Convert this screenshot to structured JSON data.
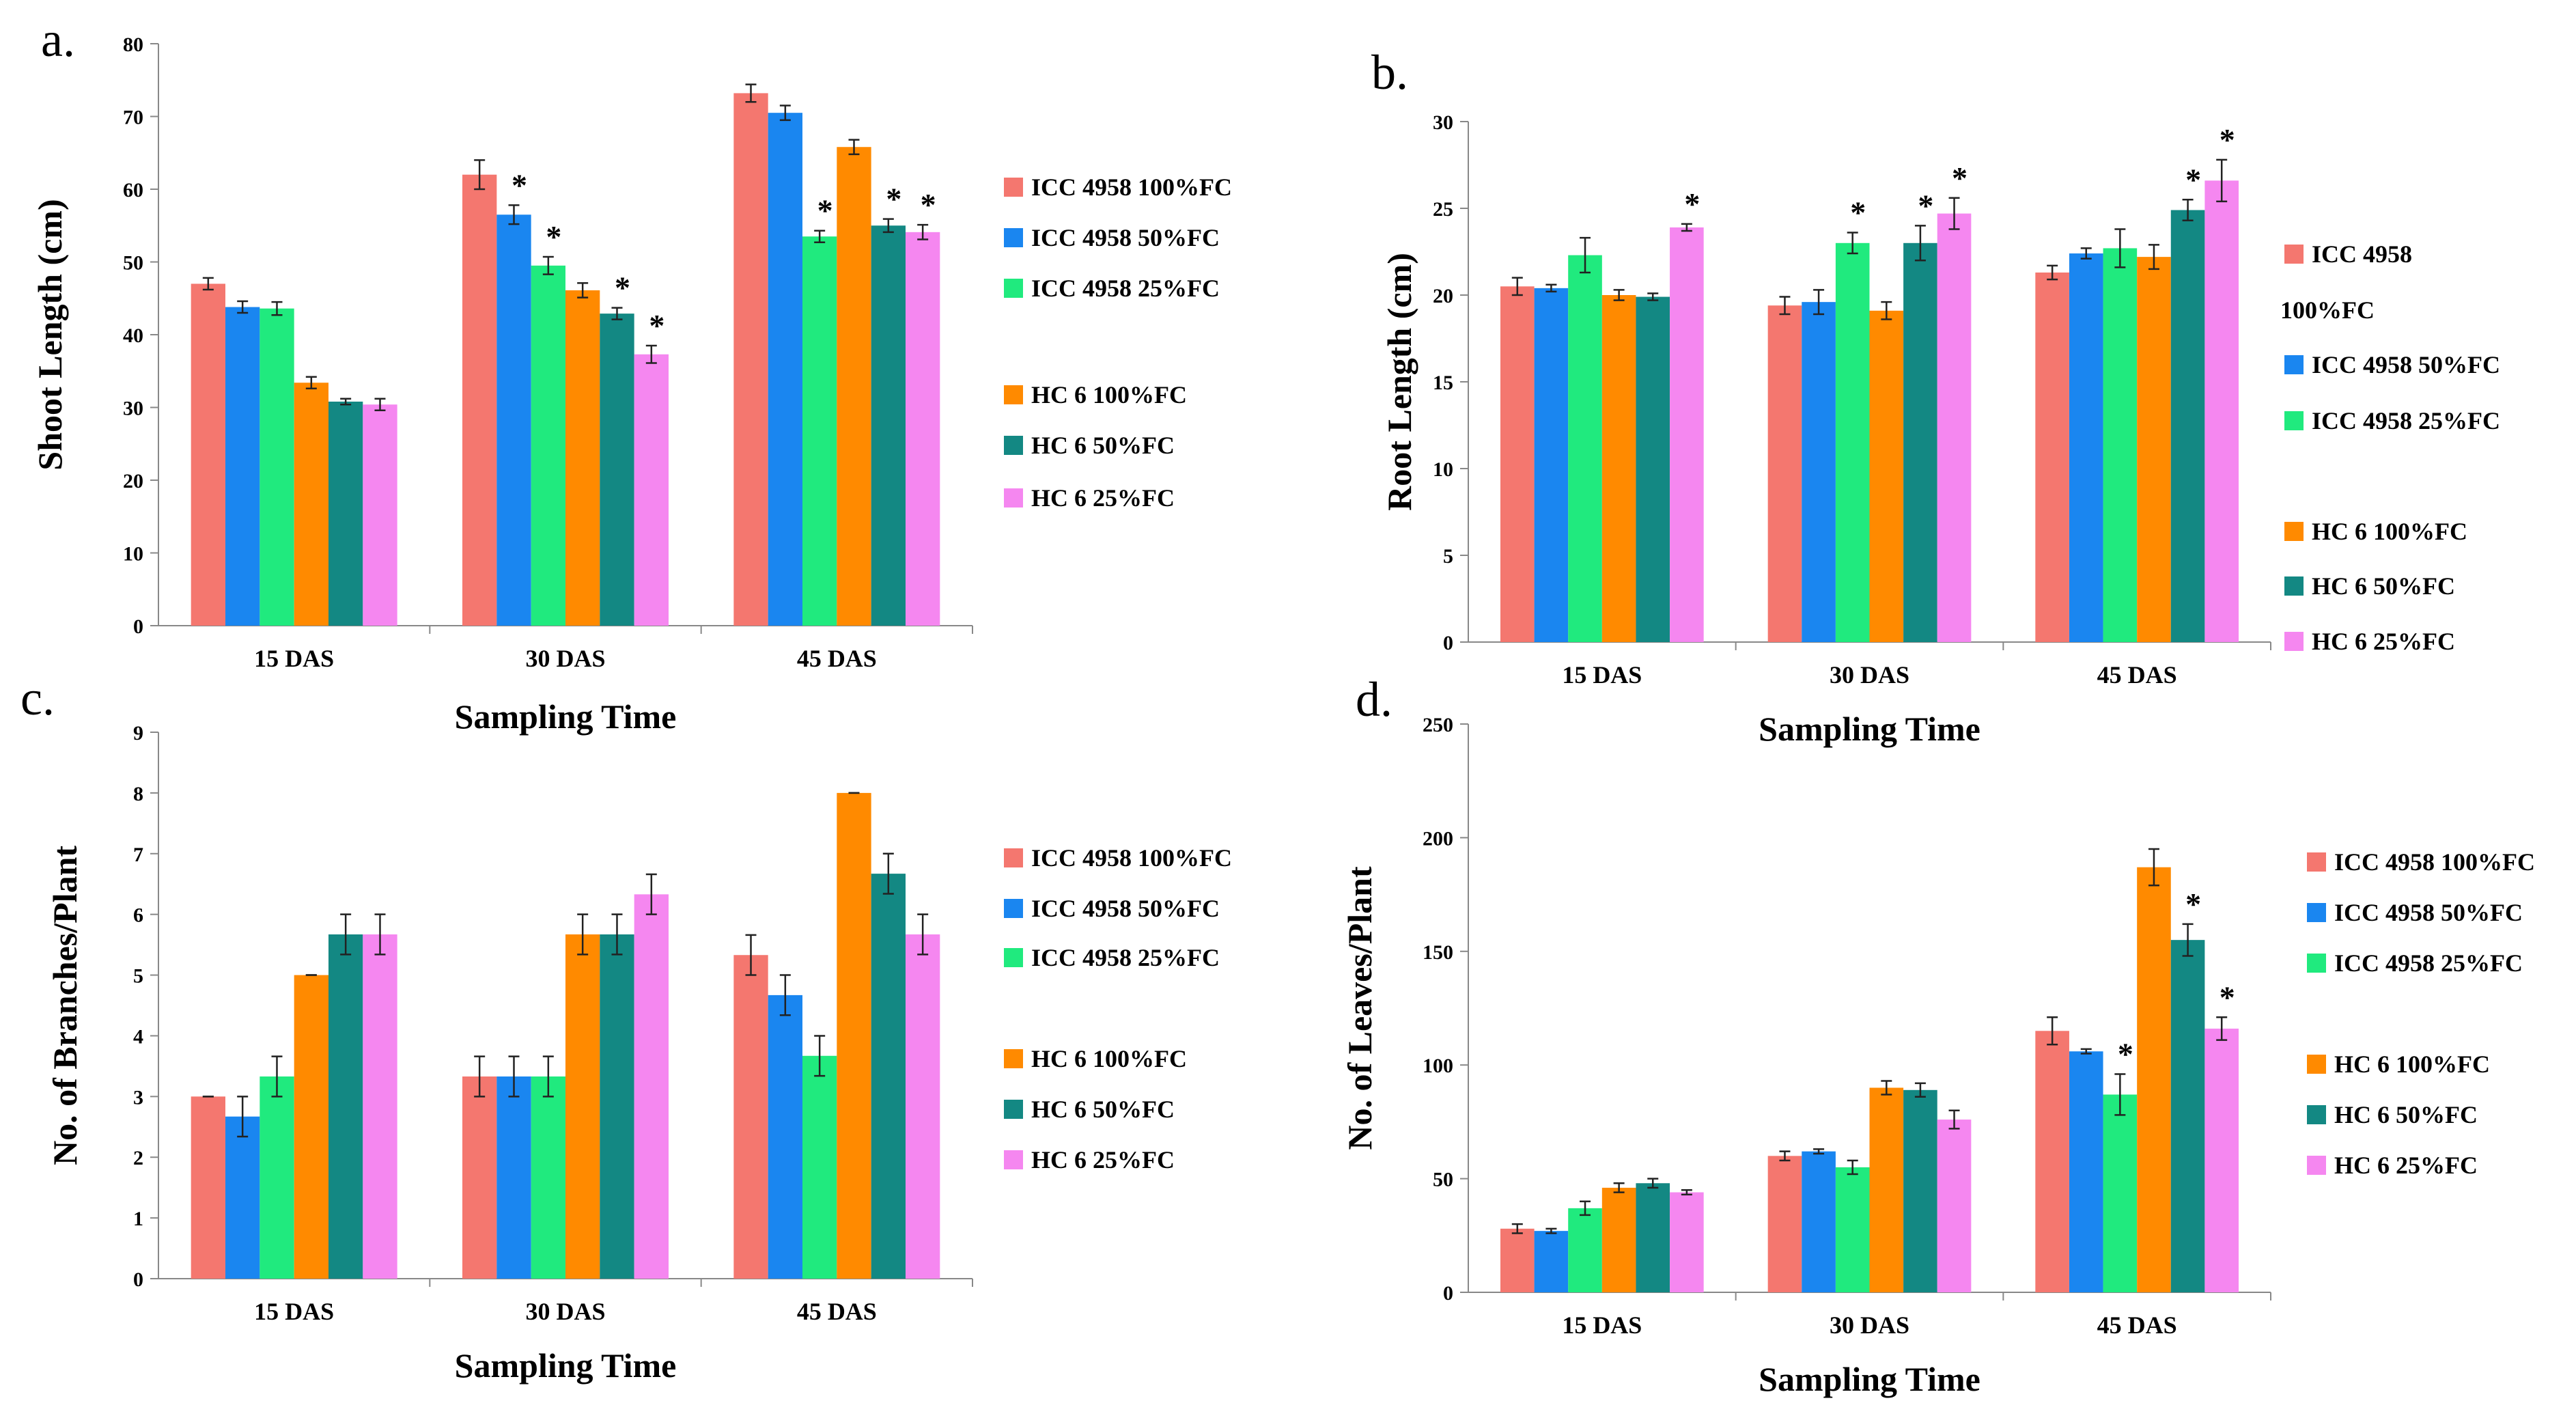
{
  "colors": {
    "s0": "#f4776f",
    "s1": "#1a86f0",
    "s2": "#20ea7e",
    "s3": "#ff8a00",
    "s4": "#138883",
    "s5": "#f587f0"
  },
  "chart_data": [
    {
      "type": "bar",
      "panel_label": "a.",
      "title": "",
      "xlabel": "Sampling Time",
      "ylabel": "Shoot Length (cm)",
      "ylim": [
        0,
        80
      ],
      "yticks": [
        "0",
        "10",
        "20",
        "30",
        "40",
        "50",
        "60",
        "70",
        "80"
      ],
      "categories": [
        "15 DAS",
        "30 DAS",
        "45 DAS"
      ],
      "legend": [
        "ICC 4958 100%FC",
        "ICC 4958 50%FC",
        "ICC 4958 25%FC",
        "HC 6 100%FC",
        "HC 6 50%FC",
        "HC 6 25%FC"
      ],
      "series": [
        {
          "name": "ICC 4958 100%FC",
          "values": [
            47.0,
            62.0,
            73.2
          ],
          "errors": [
            0.8,
            2.0,
            1.2
          ],
          "sig": [
            "",
            "",
            ""
          ]
        },
        {
          "name": "ICC 4958 50%FC",
          "values": [
            43.8,
            56.5,
            70.5
          ],
          "errors": [
            0.8,
            1.3,
            1.0
          ],
          "sig": [
            "",
            "*",
            ""
          ]
        },
        {
          "name": "ICC 4958 25%FC",
          "values": [
            43.6,
            49.5,
            53.5
          ],
          "errors": [
            0.9,
            1.2,
            0.8
          ],
          "sig": [
            "",
            "*",
            "*"
          ]
        },
        {
          "name": "HC 6 100%FC",
          "values": [
            33.4,
            46.1,
            65.8
          ],
          "errors": [
            0.8,
            1.0,
            1.0
          ],
          "sig": [
            "",
            "",
            ""
          ]
        },
        {
          "name": "HC 6 50%FC",
          "values": [
            30.8,
            42.9,
            55.0
          ],
          "errors": [
            0.4,
            0.8,
            0.9
          ],
          "sig": [
            "",
            "*",
            "*"
          ]
        },
        {
          "name": "HC 6 25%FC",
          "values": [
            30.4,
            37.3,
            54.1
          ],
          "errors": [
            0.8,
            1.2,
            1.0
          ],
          "sig": [
            "",
            "*",
            "*"
          ]
        }
      ]
    },
    {
      "type": "bar",
      "panel_label": "b.",
      "title": "",
      "xlabel": "Sampling Time",
      "ylabel": "Root Length (cm)",
      "ylim": [
        0,
        30
      ],
      "yticks": [
        "0",
        "5",
        "10",
        "15",
        "20",
        "25",
        "30"
      ],
      "categories": [
        "15 DAS",
        "30 DAS",
        "45 DAS"
      ],
      "legend": [
        "ICC 4958 100%FC",
        "ICC 4958 50%FC",
        "ICC 4958 25%FC",
        "HC 6 100%FC",
        "HC 6 50%FC",
        "HC 6 25%FC"
      ],
      "series": [
        {
          "name": "ICC 4958 100%FC",
          "values": [
            20.5,
            19.4,
            21.3
          ],
          "errors": [
            0.5,
            0.5,
            0.4
          ],
          "sig": [
            "",
            "",
            ""
          ]
        },
        {
          "name": "ICC 4958 50%FC",
          "values": [
            20.4,
            19.6,
            22.4
          ],
          "errors": [
            0.2,
            0.7,
            0.3
          ],
          "sig": [
            "",
            "",
            ""
          ]
        },
        {
          "name": "ICC 4958 25%FC",
          "values": [
            22.3,
            23.0,
            22.7
          ],
          "errors": [
            1.0,
            0.6,
            1.1
          ],
          "sig": [
            "",
            "*",
            ""
          ]
        },
        {
          "name": "HC 6 100%FC",
          "values": [
            20.0,
            19.1,
            22.2
          ],
          "errors": [
            0.3,
            0.5,
            0.7
          ],
          "sig": [
            "",
            "",
            ""
          ]
        },
        {
          "name": "HC 6 50%FC",
          "values": [
            19.9,
            23.0,
            24.9
          ],
          "errors": [
            0.2,
            1.0,
            0.6
          ],
          "sig": [
            "",
            "*",
            "*"
          ]
        },
        {
          "name": "HC 6 25%FC",
          "values": [
            23.9,
            24.7,
            26.6
          ],
          "errors": [
            0.2,
            0.9,
            1.2
          ],
          "sig": [
            "*",
            "*",
            "*"
          ]
        }
      ]
    },
    {
      "type": "bar",
      "panel_label": "c.",
      "title": "",
      "xlabel": "Sampling Time",
      "ylabel": "No. of Branches/Plant",
      "ylim": [
        0,
        9
      ],
      "yticks": [
        "0",
        "1",
        "2",
        "3",
        "4",
        "5",
        "6",
        "7",
        "8",
        "9"
      ],
      "categories": [
        "15 DAS",
        "30 DAS",
        "45 DAS"
      ],
      "legend": [
        "ICC 4958 100%FC",
        "ICC 4958 50%FC",
        "ICC 4958 25%FC",
        "HC 6 100%FC",
        "HC 6 50%FC",
        "HC 6 25%FC"
      ],
      "series": [
        {
          "name": "ICC 4958 100%FC",
          "values": [
            3.0,
            3.33,
            5.33
          ],
          "errors": [
            0.0,
            0.33,
            0.33
          ],
          "sig": [
            "",
            "",
            ""
          ]
        },
        {
          "name": "ICC 4958 50%FC",
          "values": [
            2.67,
            3.33,
            4.67
          ],
          "errors": [
            0.33,
            0.33,
            0.33
          ],
          "sig": [
            "",
            "",
            ""
          ]
        },
        {
          "name": "ICC 4958 25%FC",
          "values": [
            3.33,
            3.33,
            3.67
          ],
          "errors": [
            0.33,
            0.33,
            0.33
          ],
          "sig": [
            "",
            "",
            ""
          ]
        },
        {
          "name": "HC 6 100%FC",
          "values": [
            5.0,
            5.67,
            8.0
          ],
          "errors": [
            0.0,
            0.33,
            0.0
          ],
          "sig": [
            "",
            "",
            ""
          ]
        },
        {
          "name": "HC 6 50%FC",
          "values": [
            5.67,
            5.67,
            6.67
          ],
          "errors": [
            0.33,
            0.33,
            0.33
          ],
          "sig": [
            "",
            "",
            ""
          ]
        },
        {
          "name": "HC 6 25%FC",
          "values": [
            5.67,
            6.33,
            5.67
          ],
          "errors": [
            0.33,
            0.33,
            0.33
          ],
          "sig": [
            "",
            "",
            ""
          ]
        }
      ]
    },
    {
      "type": "bar",
      "panel_label": "d.",
      "title": "",
      "xlabel": "Sampling Time",
      "ylabel": "No. of Leaves/Plant",
      "ylim": [
        0,
        250
      ],
      "yticks": [
        "0",
        "50",
        "100",
        "150",
        "200",
        "250"
      ],
      "categories": [
        "15 DAS",
        "30 DAS",
        "45 DAS"
      ],
      "legend": [
        "ICC 4958 100%FC",
        "ICC 4958 50%FC",
        "ICC 4958 25%FC",
        "HC 6 100%FC",
        "HC 6 50%FC",
        "HC 6 25%FC"
      ],
      "series": [
        {
          "name": "ICC 4958 100%FC",
          "values": [
            28,
            60,
            115
          ],
          "errors": [
            2,
            2,
            6
          ],
          "sig": [
            "",
            "",
            ""
          ]
        },
        {
          "name": "ICC 4958 50%FC",
          "values": [
            27,
            62,
            106
          ],
          "errors": [
            1,
            1,
            1
          ],
          "sig": [
            "",
            "",
            ""
          ]
        },
        {
          "name": "ICC 4958 25%FC",
          "values": [
            37,
            55,
            87
          ],
          "errors": [
            3,
            3,
            9
          ],
          "sig": [
            "",
            "",
            "*"
          ]
        },
        {
          "name": "HC 6 100%FC",
          "values": [
            46,
            90,
            187
          ],
          "errors": [
            2,
            3,
            8
          ],
          "sig": [
            "",
            "",
            ""
          ]
        },
        {
          "name": "HC 6 50%FC",
          "values": [
            48,
            89,
            155
          ],
          "errors": [
            2,
            3,
            7
          ],
          "sig": [
            "",
            "",
            "*"
          ]
        },
        {
          "name": "HC 6 25%FC",
          "values": [
            44,
            76,
            116
          ],
          "errors": [
            1,
            4,
            5
          ],
          "sig": [
            "",
            "",
            "*"
          ]
        }
      ]
    }
  ]
}
